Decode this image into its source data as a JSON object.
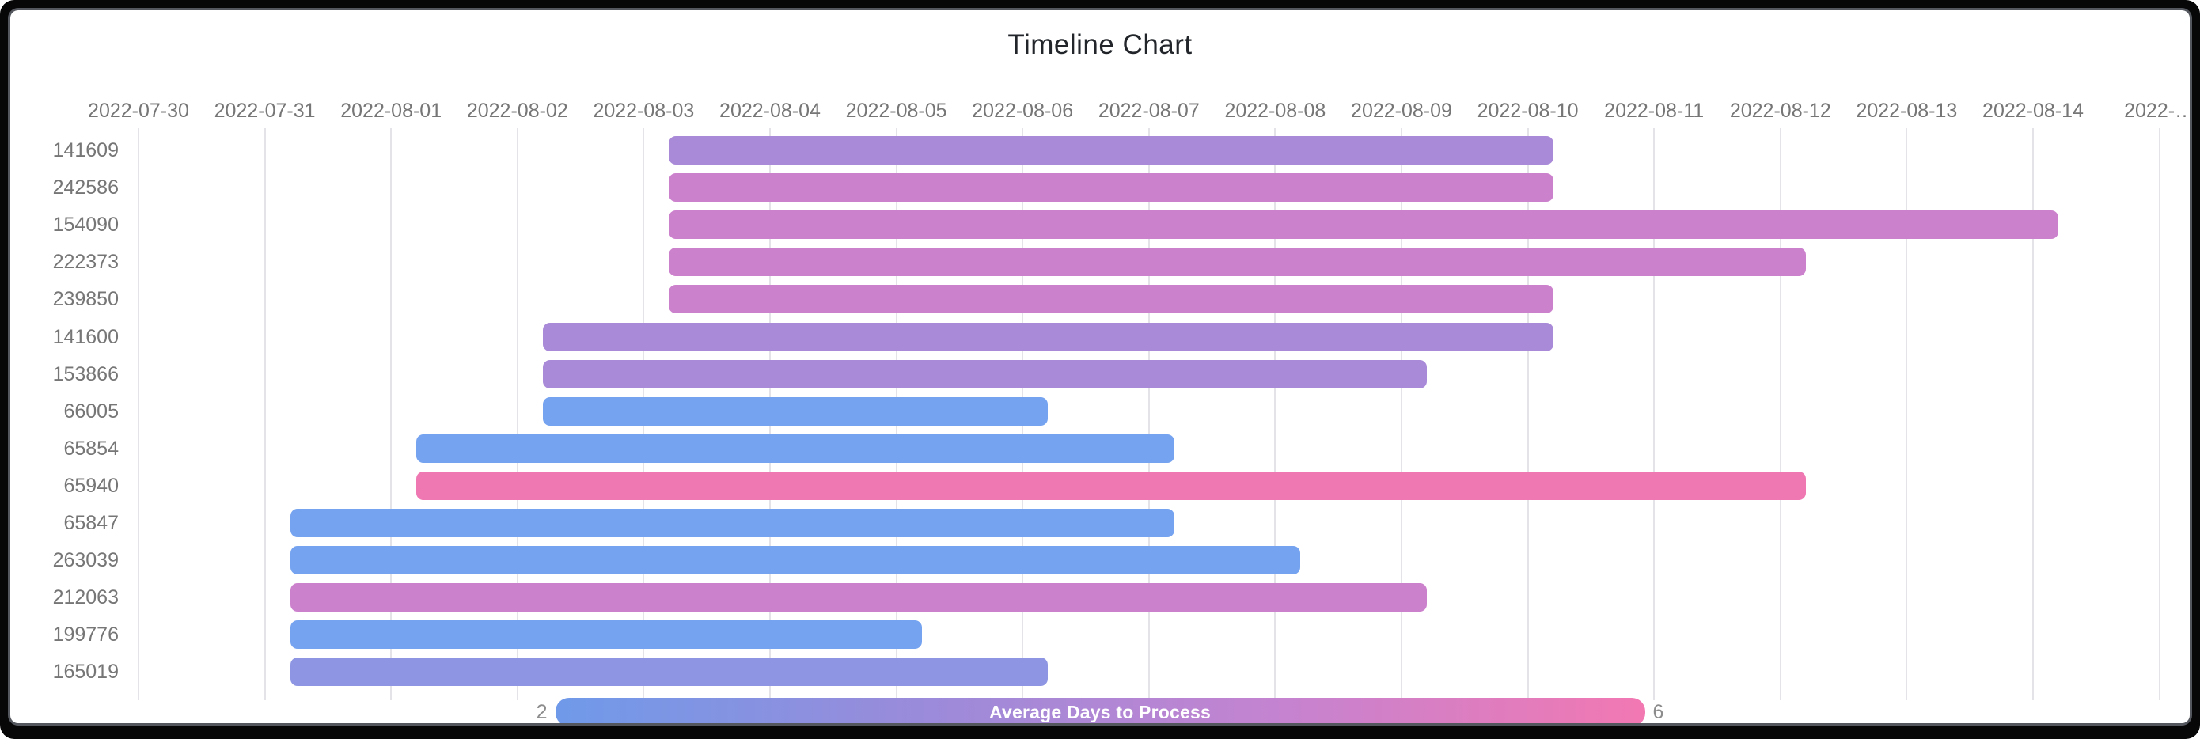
{
  "title": "Timeline Chart",
  "chart_data": {
    "type": "bar",
    "subtype": "horizontal-timeline-gantt",
    "title": "Timeline Chart",
    "x_axis": {
      "start_date": "2022-07-30",
      "tick_interval_days": 1,
      "tick_labels": [
        "2022-07-30",
        "2022-07-31",
        "2022-08-01",
        "2022-08-02",
        "2022-08-03",
        "2022-08-04",
        "2022-08-05",
        "2022-08-06",
        "2022-08-07",
        "2022-08-08",
        "2022-08-09",
        "2022-08-10",
        "2022-08-11",
        "2022-08-12",
        "2022-08-13",
        "2022-08-14",
        "2022-…"
      ]
    },
    "day_fraction_offset": 0.2,
    "grid": true,
    "categories": [
      "141609",
      "242586",
      "154090",
      "222373",
      "239850",
      "141600",
      "153866",
      "66005",
      "65854",
      "65940",
      "65847",
      "263039",
      "212063",
      "199776",
      "165019"
    ],
    "bars": [
      {
        "id": "141609",
        "start": "2022-08-03",
        "end": "2022-08-10",
        "duration_days": 7,
        "color": "#a98ad8",
        "avg_days_to_process_approx": 4
      },
      {
        "id": "242586",
        "start": "2022-08-03",
        "end": "2022-08-10",
        "duration_days": 7,
        "color": "#cc81cd",
        "avg_days_to_process_approx": 5
      },
      {
        "id": "154090",
        "start": "2022-08-03",
        "end": "2022-08-14",
        "duration_days": 11,
        "color": "#cc81cd",
        "avg_days_to_process_approx": 5
      },
      {
        "id": "222373",
        "start": "2022-08-03",
        "end": "2022-08-12",
        "duration_days": 9,
        "color": "#cc81cd",
        "avg_days_to_process_approx": 5
      },
      {
        "id": "239850",
        "start": "2022-08-03",
        "end": "2022-08-10",
        "duration_days": 7,
        "color": "#cc81cd",
        "avg_days_to_process_approx": 5
      },
      {
        "id": "141600",
        "start": "2022-08-02",
        "end": "2022-08-10",
        "duration_days": 8,
        "color": "#a98ad8",
        "avg_days_to_process_approx": 4
      },
      {
        "id": "153866",
        "start": "2022-08-02",
        "end": "2022-08-09",
        "duration_days": 7,
        "color": "#a98ad8",
        "avg_days_to_process_approx": 4
      },
      {
        "id": "66005",
        "start": "2022-08-02",
        "end": "2022-08-06",
        "duration_days": 4,
        "color": "#75a3f0",
        "avg_days_to_process_approx": 2
      },
      {
        "id": "65854",
        "start": "2022-08-01",
        "end": "2022-08-07",
        "duration_days": 6,
        "color": "#75a3f0",
        "avg_days_to_process_approx": 2
      },
      {
        "id": "65940",
        "start": "2022-08-01",
        "end": "2022-08-12",
        "duration_days": 11,
        "color": "#ef78b2",
        "avg_days_to_process_approx": 6
      },
      {
        "id": "65847",
        "start": "2022-07-31",
        "end": "2022-08-07",
        "duration_days": 7,
        "color": "#75a3f0",
        "avg_days_to_process_approx": 2
      },
      {
        "id": "263039",
        "start": "2022-07-31",
        "end": "2022-08-08",
        "duration_days": 8,
        "color": "#75a3f0",
        "avg_days_to_process_approx": 2
      },
      {
        "id": "212063",
        "start": "2022-07-31",
        "end": "2022-08-09",
        "duration_days": 9,
        "color": "#cc81cd",
        "avg_days_to_process_approx": 5
      },
      {
        "id": "199776",
        "start": "2022-07-31",
        "end": "2022-08-05",
        "duration_days": 5,
        "color": "#75a3f0",
        "avg_days_to_process_approx": 2
      },
      {
        "id": "165019",
        "start": "2022-07-31",
        "end": "2022-08-06",
        "duration_days": 6,
        "color": "#8e96e3",
        "avg_days_to_process_approx": 3
      }
    ],
    "legend": {
      "label": "Average Days to Process",
      "min": "2",
      "max": "6",
      "position": "bottom-center",
      "gradient": [
        "#6f9ae9",
        "#9a8bda",
        "#c583d0",
        "#f278b2"
      ]
    }
  }
}
